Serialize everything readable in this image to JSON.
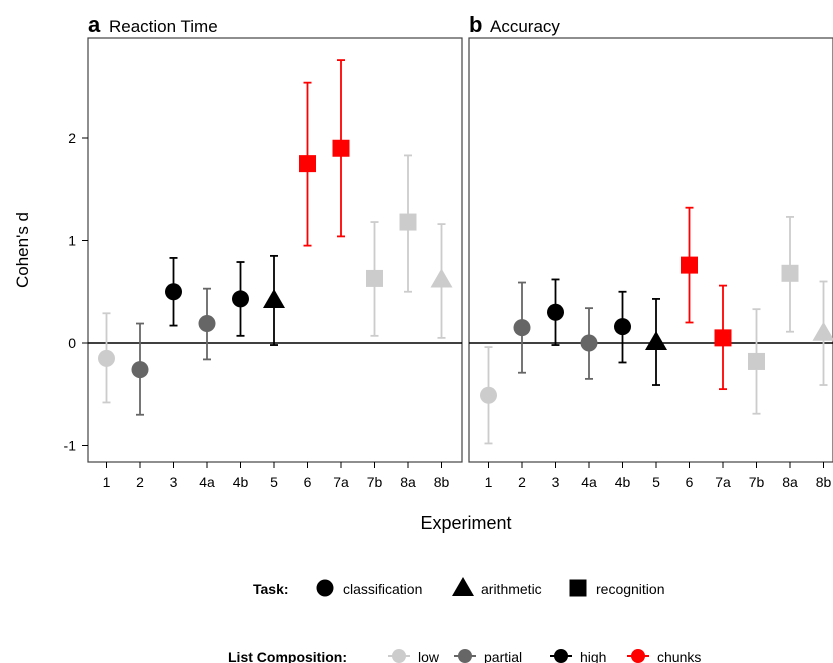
{
  "chart_data": {
    "type": "scatter",
    "xlabel": "Experiment",
    "ylabel": "Cohen's d",
    "categories": [
      "1",
      "2",
      "3",
      "4a",
      "4b",
      "5",
      "6",
      "7a",
      "7b",
      "8a",
      "8b"
    ],
    "ylim": [
      -1.2,
      2.95
    ],
    "yticks": [
      -1,
      0,
      1,
      2
    ],
    "panels": [
      {
        "letter": "a",
        "title": "Reaction Time",
        "points": [
          {
            "x": "1",
            "y": -0.15,
            "lo": -0.58,
            "hi": 0.29,
            "task": "classification",
            "list": "low"
          },
          {
            "x": "2",
            "y": -0.26,
            "lo": -0.7,
            "hi": 0.19,
            "task": "classification",
            "list": "partial"
          },
          {
            "x": "3",
            "y": 0.5,
            "lo": 0.17,
            "hi": 0.83,
            "task": "classification",
            "list": "high"
          },
          {
            "x": "4a",
            "y": 0.19,
            "lo": -0.16,
            "hi": 0.53,
            "task": "classification",
            "list": "partial"
          },
          {
            "x": "4b",
            "y": 0.43,
            "lo": 0.07,
            "hi": 0.79,
            "task": "classification",
            "list": "high"
          },
          {
            "x": "5",
            "y": 0.42,
            "lo": -0.02,
            "hi": 0.85,
            "task": "arithmetic",
            "list": "high"
          },
          {
            "x": "6",
            "y": 1.75,
            "lo": 0.95,
            "hi": 2.54,
            "task": "recognition",
            "list": "chunks"
          },
          {
            "x": "7a",
            "y": 1.9,
            "lo": 1.04,
            "hi": 2.76,
            "task": "recognition",
            "list": "chunks"
          },
          {
            "x": "7b",
            "y": 0.63,
            "lo": 0.07,
            "hi": 1.18,
            "task": "recognition",
            "list": "low"
          },
          {
            "x": "8a",
            "y": 1.18,
            "lo": 0.5,
            "hi": 1.83,
            "task": "recognition",
            "list": "low"
          },
          {
            "x": "8b",
            "y": 0.62,
            "lo": 0.05,
            "hi": 1.16,
            "task": "arithmetic",
            "list": "low"
          }
        ]
      },
      {
        "letter": "b",
        "title": "Accuracy",
        "points": [
          {
            "x": "1",
            "y": -0.51,
            "lo": -0.98,
            "hi": -0.04,
            "task": "classification",
            "list": "low"
          },
          {
            "x": "2",
            "y": 0.15,
            "lo": -0.29,
            "hi": 0.59,
            "task": "classification",
            "list": "partial"
          },
          {
            "x": "3",
            "y": 0.3,
            "lo": -0.02,
            "hi": 0.62,
            "task": "classification",
            "list": "high"
          },
          {
            "x": "4a",
            "y": 0.0,
            "lo": -0.35,
            "hi": 0.34,
            "task": "classification",
            "list": "partial"
          },
          {
            "x": "4b",
            "y": 0.16,
            "lo": -0.19,
            "hi": 0.5,
            "task": "classification",
            "list": "high"
          },
          {
            "x": "5",
            "y": 0.01,
            "lo": -0.41,
            "hi": 0.43,
            "task": "arithmetic",
            "list": "high"
          },
          {
            "x": "6",
            "y": 0.76,
            "lo": 0.2,
            "hi": 1.32,
            "task": "recognition",
            "list": "chunks"
          },
          {
            "x": "7a",
            "y": 0.05,
            "lo": -0.45,
            "hi": 0.56,
            "task": "recognition",
            "list": "chunks"
          },
          {
            "x": "7b",
            "y": -0.18,
            "lo": -0.69,
            "hi": 0.33,
            "task": "recognition",
            "list": "low"
          },
          {
            "x": "8a",
            "y": 0.68,
            "lo": 0.11,
            "hi": 1.23,
            "task": "recognition",
            "list": "low"
          },
          {
            "x": "8b",
            "y": 0.1,
            "lo": -0.41,
            "hi": 0.6,
            "task": "arithmetic",
            "list": "low"
          }
        ]
      }
    ],
    "legend_task": {
      "title": "Task:",
      "entries": [
        {
          "label": "classification",
          "shape": "circle"
        },
        {
          "label": "arithmetic",
          "shape": "triangle"
        },
        {
          "label": "recognition",
          "shape": "square"
        }
      ]
    },
    "legend_list": {
      "title": "List Composition:",
      "entries": [
        {
          "label": "low",
          "color": "#cccccc"
        },
        {
          "label": "partial",
          "color": "#666666"
        },
        {
          "label": "high",
          "color": "#000000"
        },
        {
          "label": "chunks",
          "color": "#ff0000"
        }
      ]
    },
    "colors": {
      "low": "#cccccc",
      "partial": "#666666",
      "high": "#000000",
      "chunks": "#ff0000"
    },
    "grid": false,
    "legend_position": "bottom"
  }
}
